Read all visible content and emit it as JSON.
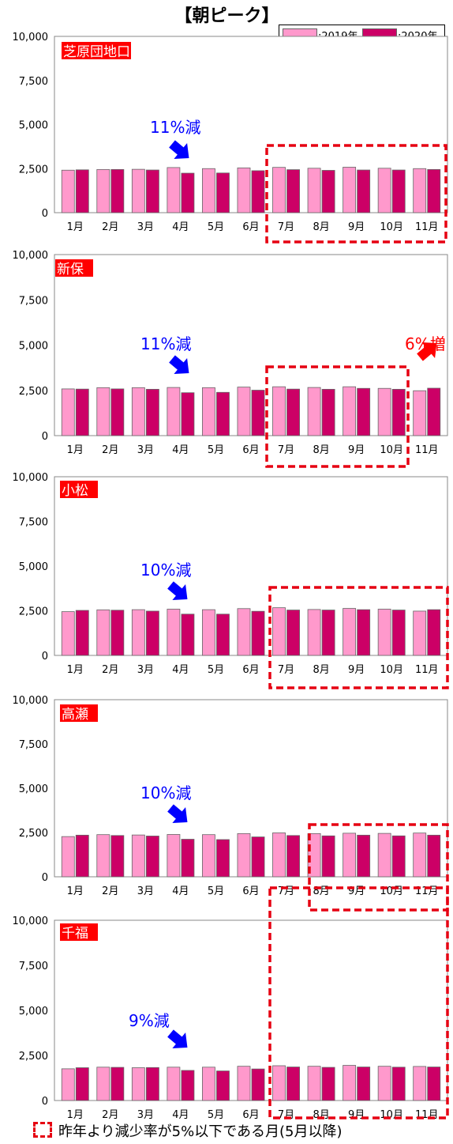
{
  "header": {
    "title": "【朝ピーク】",
    "legend": [
      {
        "label": ":2019年",
        "color": "#ff99cc"
      },
      {
        "label": ":2020年",
        "color": "#cc0066"
      }
    ]
  },
  "footer": {
    "note": "昨年より減少率が5%以下である月(5月以降)"
  },
  "chart_data": [
    {
      "type": "bar",
      "title": "芝原団地口",
      "y_ticks": [
        "10,000",
        "7,500",
        "5,000",
        "2,500",
        "0"
      ],
      "ylim": [
        0,
        10000
      ],
      "categories": [
        "1月",
        "2月",
        "3月",
        "4月",
        "5月",
        "6月",
        "7月",
        "8月",
        "9月",
        "10月",
        "11月"
      ],
      "series": [
        {
          "name": ":2019年",
          "values": [
            2410,
            2450,
            2460,
            2560,
            2500,
            2540,
            2570,
            2520,
            2580,
            2520,
            2500
          ]
        },
        {
          "name": ":2020年",
          "values": [
            2430,
            2450,
            2420,
            2240,
            2250,
            2380,
            2440,
            2400,
            2420,
            2420,
            2450
          ]
        }
      ],
      "annotations": [
        {
          "text": "11%減",
          "arrow": "down",
          "color": "#0000ff"
        }
      ],
      "highlight_months": [
        "7月",
        "8月",
        "9月",
        "10月",
        "11月"
      ]
    },
    {
      "type": "bar",
      "title": "新保",
      "y_ticks": [
        "10,000",
        "7,500",
        "5,000",
        "2,500",
        "0"
      ],
      "ylim": [
        0,
        10000
      ],
      "categories": [
        "1月",
        "2月",
        "3月",
        "4月",
        "5月",
        "6月",
        "7月",
        "8月",
        "9月",
        "10月",
        "11月"
      ],
      "series": [
        {
          "name": ":2019年",
          "values": [
            2580,
            2650,
            2650,
            2660,
            2650,
            2680,
            2700,
            2660,
            2700,
            2610,
            2480
          ]
        },
        {
          "name": ":2020年",
          "values": [
            2570,
            2580,
            2560,
            2370,
            2390,
            2510,
            2570,
            2560,
            2610,
            2560,
            2620
          ]
        }
      ],
      "annotations": [
        {
          "text": "11%減",
          "arrow": "down",
          "color": "#0000ff"
        },
        {
          "text": "6%増",
          "arrow": "up",
          "color": "#ff0000"
        }
      ],
      "highlight_months": [
        "7月",
        "8月",
        "9月",
        "10月"
      ]
    },
    {
      "type": "bar",
      "title": "小松",
      "y_ticks": [
        "10,000",
        "7,500",
        "5,000",
        "2,500",
        "0"
      ],
      "ylim": [
        0,
        10000
      ],
      "categories": [
        "1月",
        "2月",
        "3月",
        "4月",
        "5月",
        "6月",
        "7月",
        "8月",
        "9月",
        "10月",
        "11月"
      ],
      "series": [
        {
          "name": ":2019年",
          "values": [
            2450,
            2550,
            2560,
            2590,
            2560,
            2620,
            2670,
            2570,
            2630,
            2590,
            2480
          ]
        },
        {
          "name": ":2020年",
          "values": [
            2520,
            2530,
            2480,
            2310,
            2310,
            2470,
            2540,
            2540,
            2560,
            2540,
            2560
          ]
        }
      ],
      "annotations": [
        {
          "text": "10%減",
          "arrow": "down",
          "color": "#0000ff"
        }
      ],
      "highlight_months": [
        "7月",
        "8月",
        "9月",
        "10月",
        "11月"
      ]
    },
    {
      "type": "bar",
      "title": "高瀬",
      "y_ticks": [
        "10,000",
        "7,500",
        "5,000",
        "2,500",
        "0"
      ],
      "ylim": [
        0,
        10000
      ],
      "categories": [
        "1月",
        "2月",
        "3月",
        "4月",
        "5月",
        "6月",
        "7月",
        "8月",
        "9月",
        "10月",
        "11月"
      ],
      "series": [
        {
          "name": ":2019年",
          "values": [
            2270,
            2380,
            2360,
            2390,
            2380,
            2440,
            2480,
            2440,
            2460,
            2450,
            2470
          ]
        },
        {
          "name": ":2020年",
          "values": [
            2350,
            2330,
            2300,
            2120,
            2100,
            2250,
            2330,
            2310,
            2350,
            2310,
            2350
          ]
        }
      ],
      "annotations": [
        {
          "text": "10%減",
          "arrow": "down",
          "color": "#0000ff"
        }
      ],
      "highlight_months": [
        "8月",
        "9月",
        "10月",
        "11月"
      ]
    },
    {
      "type": "bar",
      "title": "千福",
      "y_ticks": [
        "10,000",
        "7,500",
        "5,000",
        "2,500",
        "0"
      ],
      "ylim": [
        0,
        10000
      ],
      "categories": [
        "1月",
        "2月",
        "3月",
        "4月",
        "5月",
        "6月",
        "7月",
        "8月",
        "9月",
        "10月",
        "11月"
      ],
      "series": [
        {
          "name": ":2019年",
          "values": [
            1760,
            1850,
            1820,
            1850,
            1850,
            1900,
            1930,
            1900,
            1950,
            1900,
            1890
          ]
        },
        {
          "name": ":2020年",
          "values": [
            1820,
            1840,
            1830,
            1670,
            1640,
            1750,
            1860,
            1840,
            1860,
            1850,
            1860
          ]
        }
      ],
      "annotations": [
        {
          "text": "9%減",
          "arrow": "down",
          "color": "#0000ff"
        }
      ],
      "highlight_months": [
        "7月",
        "8月",
        "9月",
        "10月",
        "11月"
      ]
    }
  ]
}
